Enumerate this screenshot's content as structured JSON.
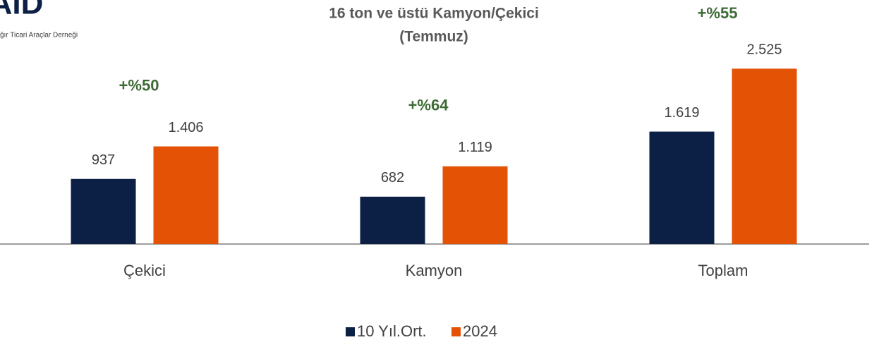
{
  "logo_subtitle": "ğır Ticari Araçlar Derneği",
  "chart_data": {
    "type": "bar",
    "title": [
      "16 ton ve üstü Kamyon/Çekici",
      "(Temmuz)"
    ],
    "categories": [
      "Çekici",
      "Kamyon",
      "Toplam"
    ],
    "series": [
      {
        "name": "10 Yıl.Ort.",
        "color": "#0c1f45",
        "values": [
          937,
          682,
          1619
        ],
        "value_labels": [
          "937",
          "682",
          "1.619"
        ]
      },
      {
        "name": "2024",
        "color": "#e35205",
        "values": [
          1406,
          1119,
          2525
        ],
        "value_labels": [
          "1.406",
          "1.119",
          "2.525"
        ]
      }
    ],
    "annotations": [
      "+%50",
      "+%64",
      "+%55"
    ],
    "ylim": [
      0,
      2600
    ],
    "legend": "bottom"
  }
}
